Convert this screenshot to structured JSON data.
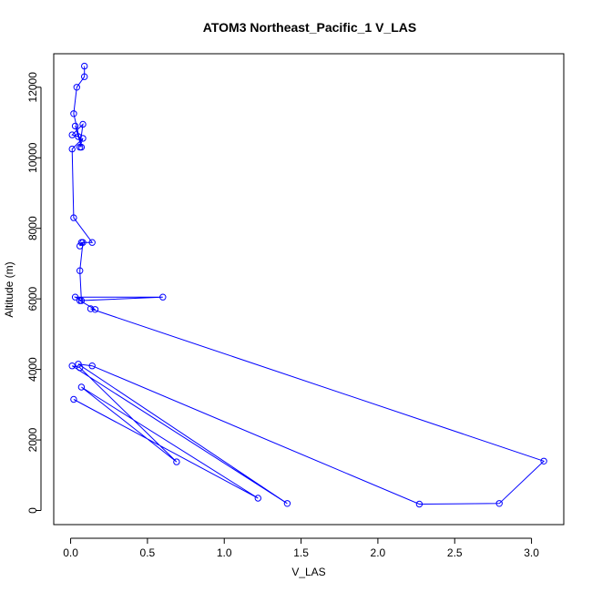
{
  "chart_data": {
    "type": "line",
    "title": "ATOM3 Northeast_Pacific_1 V_LAS",
    "xlabel": "V_LAS",
    "ylabel": "Altitude (m)",
    "xlim": [
      -0.11,
      3.21
    ],
    "ylim": [
      -400,
      12950
    ],
    "xticks": [
      0.0,
      0.5,
      1.0,
      1.5,
      2.0,
      2.5,
      3.0
    ],
    "xtick_labels": [
      "0.0",
      "0.5",
      "1.0",
      "1.5",
      "2.0",
      "2.5",
      "3.0"
    ],
    "yticks": [
      0,
      2000,
      4000,
      6000,
      8000,
      10000,
      12000
    ],
    "ytick_labels": [
      "0",
      "2000",
      "4000",
      "6000",
      "8000",
      "10000",
      "12000"
    ],
    "grid": false,
    "marker": "open-circle",
    "color": "#0000ff",
    "series": [
      {
        "x": [
          0.09,
          0.09,
          0.04,
          0.02,
          0.07,
          0.03,
          0.05,
          0.01,
          0.08,
          0.06,
          0.08,
          0.01,
          0.02,
          0.14,
          0.07,
          0.06,
          0.08,
          0.06,
          0.07,
          0.03,
          0.6,
          0.06,
          0.16,
          0.13,
          3.08,
          2.79,
          2.27,
          0.14,
          0.05,
          1.41,
          0.01,
          0.06,
          0.69,
          0.07,
          1.22,
          0.02
        ],
        "y": [
          12600,
          12300,
          12000,
          11250,
          10300,
          10900,
          10600,
          10650,
          10950,
          10300,
          10550,
          10250,
          8300,
          7600,
          7600,
          7500,
          7600,
          6800,
          5950,
          6050,
          6050,
          5950,
          5700,
          5720,
          1400,
          200,
          180,
          4100,
          4150,
          200,
          4100,
          4050,
          1380,
          3500,
          350,
          3150
        ]
      }
    ]
  }
}
